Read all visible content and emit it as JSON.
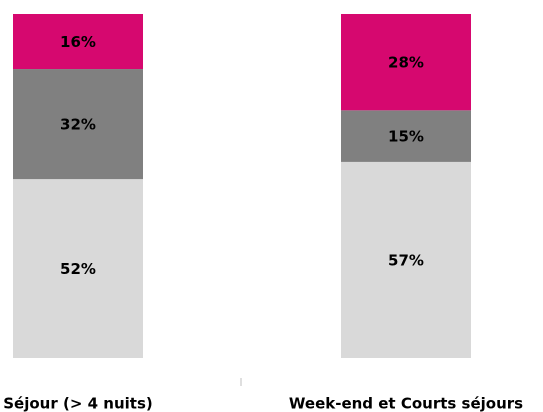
{
  "chart_data": {
    "type": "stacked_bar",
    "categories": [
      "Séjour (> 4 nuits)",
      "Week-end et Courts séjours"
    ],
    "series": [
      {
        "color": "#d9d9d9",
        "values": [
          52,
          57
        ],
        "value_labels": [
          "52%",
          "57%"
        ]
      },
      {
        "color": "#808080",
        "values": [
          32,
          15
        ],
        "value_labels": [
          "32%",
          "15%"
        ]
      },
      {
        "color": "#d6086f",
        "values": [
          16,
          28
        ],
        "value_labels": [
          "16%",
          "28%"
        ]
      }
    ],
    "ylim": [
      0,
      100
    ]
  }
}
